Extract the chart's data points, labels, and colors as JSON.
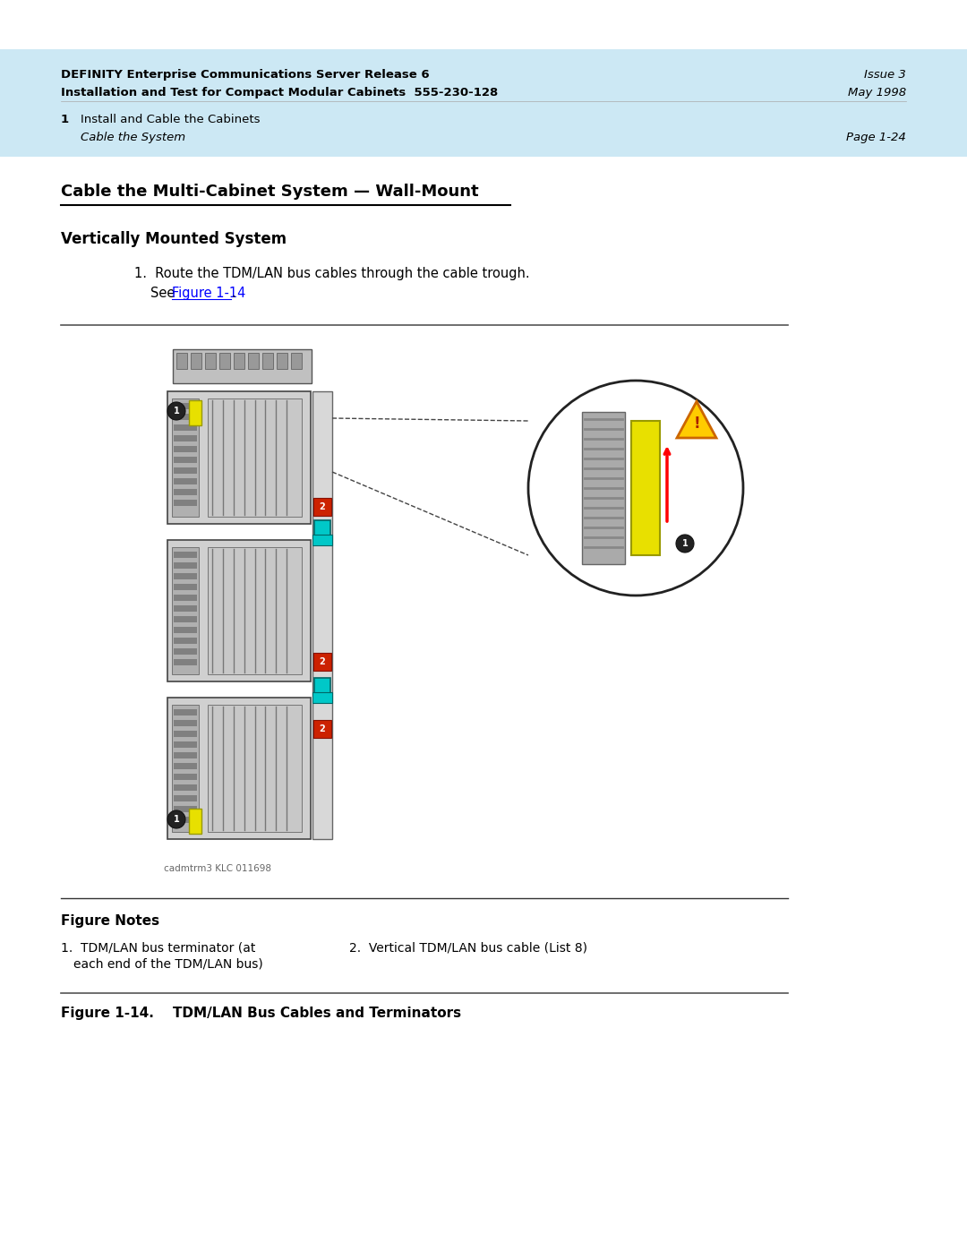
{
  "page_bg": "#ffffff",
  "header_bg": "#cce8f4",
  "header_line1_bold": "DEFINITY Enterprise Communications Server Release 6",
  "header_line1_right": "Issue 3",
  "header_line2_bold": "Installation and Test for Compact Modular Cabinets  555-230-128",
  "header_line2_right": "May 1998",
  "header_line3_num": "1",
  "header_line3_text": "Install and Cable the Cabinets",
  "header_line4_italic": "Cable the System",
  "header_line4_right": "Page 1-24",
  "section_title": "Cable the Multi-Cabinet System — Wall-Mount",
  "subsection_title": "Vertically Mounted System",
  "step1_text": "Route the TDM/LAN bus cables through the cable trough.",
  "step1_see": "See ",
  "step1_link": "Figure 1-14",
  "step1_period": ".",
  "figure_notes_title": "Figure Notes",
  "note1_line1": "1.  TDM/LAN bus terminator (at",
  "note1_line2": "each end of the TDM/LAN bus)",
  "note2_text": "2.  Vertical TDM/LAN bus cable (List 8)",
  "figure_caption": "Figure 1-14.    TDM/LAN Bus Cables and Terminators",
  "link_color": "#0000ff",
  "text_color": "#000000",
  "header_text_color": "#000000",
  "caption_small": "cadmtrm3 KLC 011698"
}
